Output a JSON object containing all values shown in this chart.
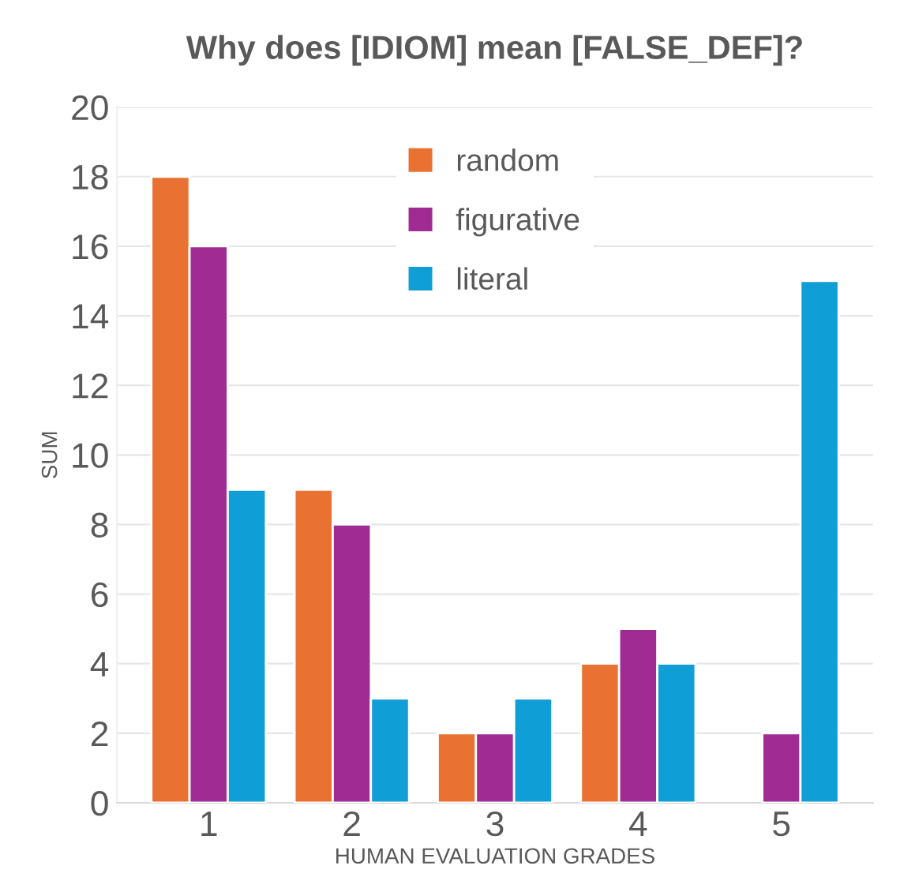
{
  "chart_data": {
    "type": "bar",
    "title": "Why does [IDIOM] mean [FALSE_DEF]?",
    "xlabel": "HUMAN EVALUATION GRADES",
    "ylabel": "SUM",
    "categories": [
      "1",
      "2",
      "3",
      "4",
      "5"
    ],
    "series": [
      {
        "name": "random",
        "color": "#e97132",
        "values": [
          18,
          9,
          2,
          4,
          null
        ]
      },
      {
        "name": "figurative",
        "color": "#a02b93",
        "values": [
          16,
          8,
          2,
          5,
          2
        ]
      },
      {
        "name": "literal",
        "color": "#0f9ed5",
        "values": [
          9,
          3,
          3,
          4,
          15
        ]
      }
    ],
    "ylim": [
      0,
      20
    ],
    "yticks": [
      0,
      2,
      4,
      6,
      8,
      10,
      12,
      14,
      16,
      18,
      20
    ],
    "grid": "y",
    "legend": "top"
  }
}
